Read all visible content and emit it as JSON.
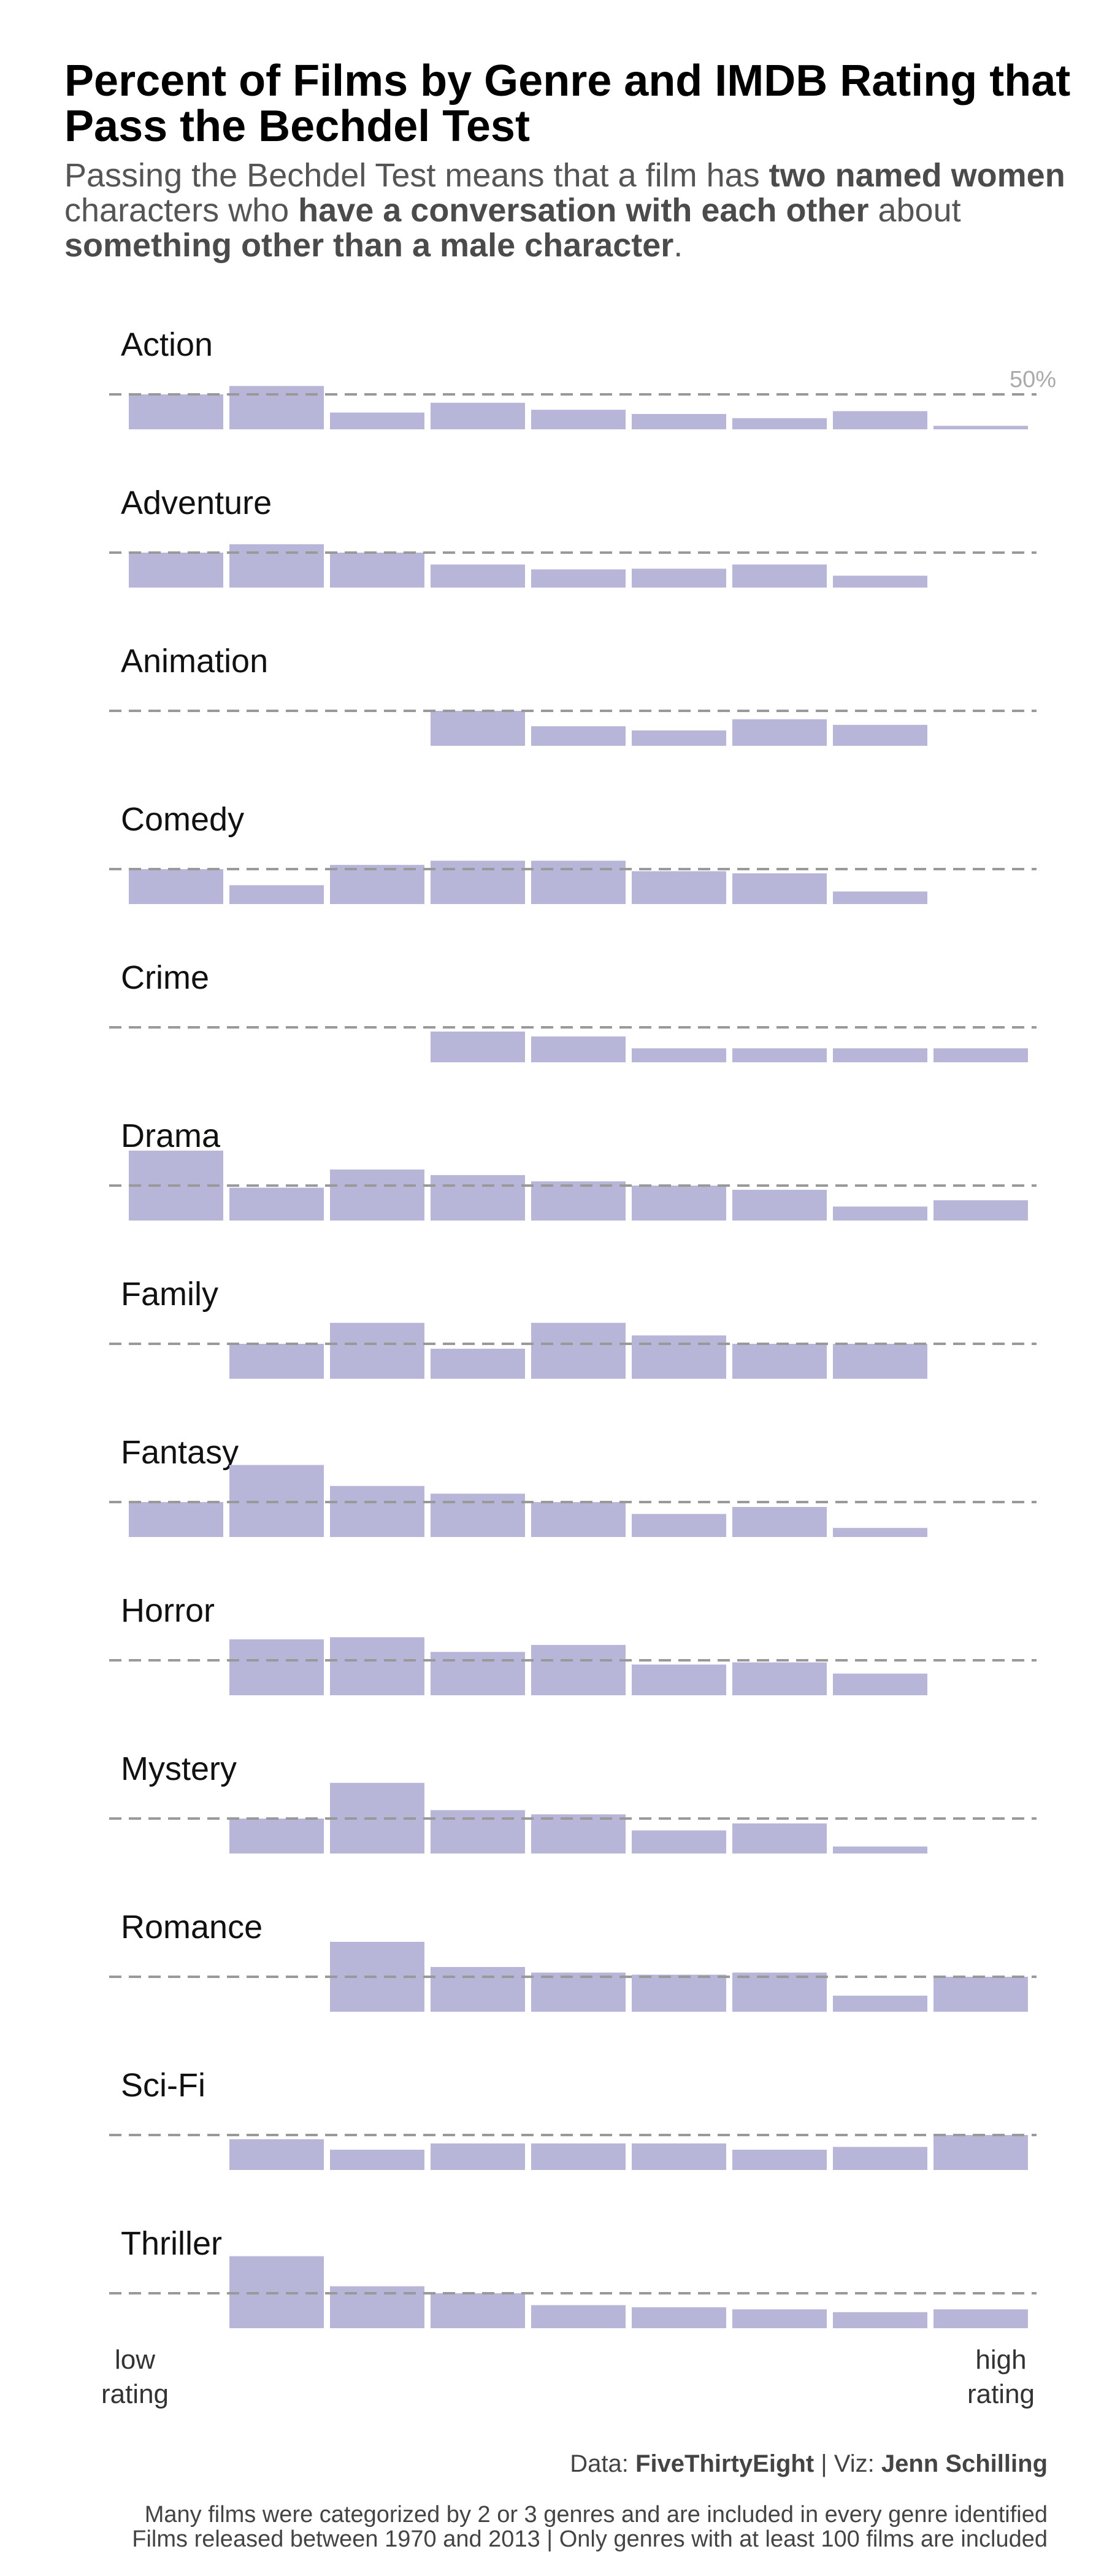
{
  "title": "Percent of Films by Genre and IMDB Rating that Pass the Bechdel Test",
  "subtitle": {
    "p1": "Passing the Bechdel Test means that a film has ",
    "b1": "two named women",
    "p2": " characters who ",
    "b2": "have a conversation with each other",
    "p3": " about ",
    "b3": "something other than a male character",
    "p4": "."
  },
  "footer": {
    "data_prefix": "Data: ",
    "data_source": "FiveThirtyEight",
    "viz_prefix": " | Viz: ",
    "viz_author": "Jenn Schilling",
    "note1": "Many films were categorized by 2 or 3 genres and are included in every genre identified",
    "note2": "Films released between 1970 and 2013 | Only genres with at least 100 films are included"
  },
  "colors": {
    "bar": "#b8b6d8",
    "reference_line": "#999999"
  },
  "chart_data": {
    "type": "bar",
    "categories": [
      "1",
      "2",
      "3",
      "4",
      "5",
      "6",
      "7",
      "8",
      "9"
    ],
    "x_labels": {
      "low": "low rating",
      "high": "high rating"
    },
    "reference_value": 50,
    "reference_label": "50%",
    "ylim": [
      0,
      100
    ],
    "series": [
      {
        "name": "Action",
        "values": [
          50,
          62,
          24,
          38,
          28,
          22,
          16,
          26,
          5
        ]
      },
      {
        "name": "Adventure",
        "values": [
          50,
          62,
          50,
          33,
          26,
          27,
          33,
          17,
          null
        ]
      },
      {
        "name": "Animation",
        "values": [
          null,
          null,
          null,
          50,
          28,
          22,
          38,
          30,
          null
        ]
      },
      {
        "name": "Comedy",
        "values": [
          50,
          27,
          56,
          62,
          62,
          47,
          44,
          18,
          null
        ]
      },
      {
        "name": "Crime",
        "values": [
          null,
          null,
          null,
          44,
          37,
          20,
          20,
          20,
          20
        ]
      },
      {
        "name": "Drama",
        "values": [
          100,
          47,
          73,
          65,
          56,
          50,
          44,
          20,
          29
        ]
      },
      {
        "name": "Family",
        "values": [
          null,
          50,
          80,
          43,
          80,
          62,
          50,
          50,
          null
        ]
      },
      {
        "name": "Fantasy",
        "values": [
          50,
          103,
          73,
          62,
          50,
          33,
          43,
          13,
          null
        ]
      },
      {
        "name": "Horror",
        "values": [
          null,
          80,
          83,
          62,
          72,
          44,
          47,
          31,
          null
        ]
      },
      {
        "name": "Mystery",
        "values": [
          null,
          50,
          101,
          62,
          56,
          33,
          43,
          10,
          null
        ]
      },
      {
        "name": "Romance",
        "values": [
          null,
          null,
          100,
          64,
          56,
          53,
          56,
          23,
          50
        ]
      },
      {
        "name": "Sci-Fi",
        "values": [
          null,
          44,
          29,
          38,
          38,
          38,
          29,
          33,
          50
        ]
      },
      {
        "name": "Thriller",
        "values": [
          null,
          103,
          60,
          50,
          33,
          30,
          27,
          23,
          27
        ]
      }
    ]
  }
}
